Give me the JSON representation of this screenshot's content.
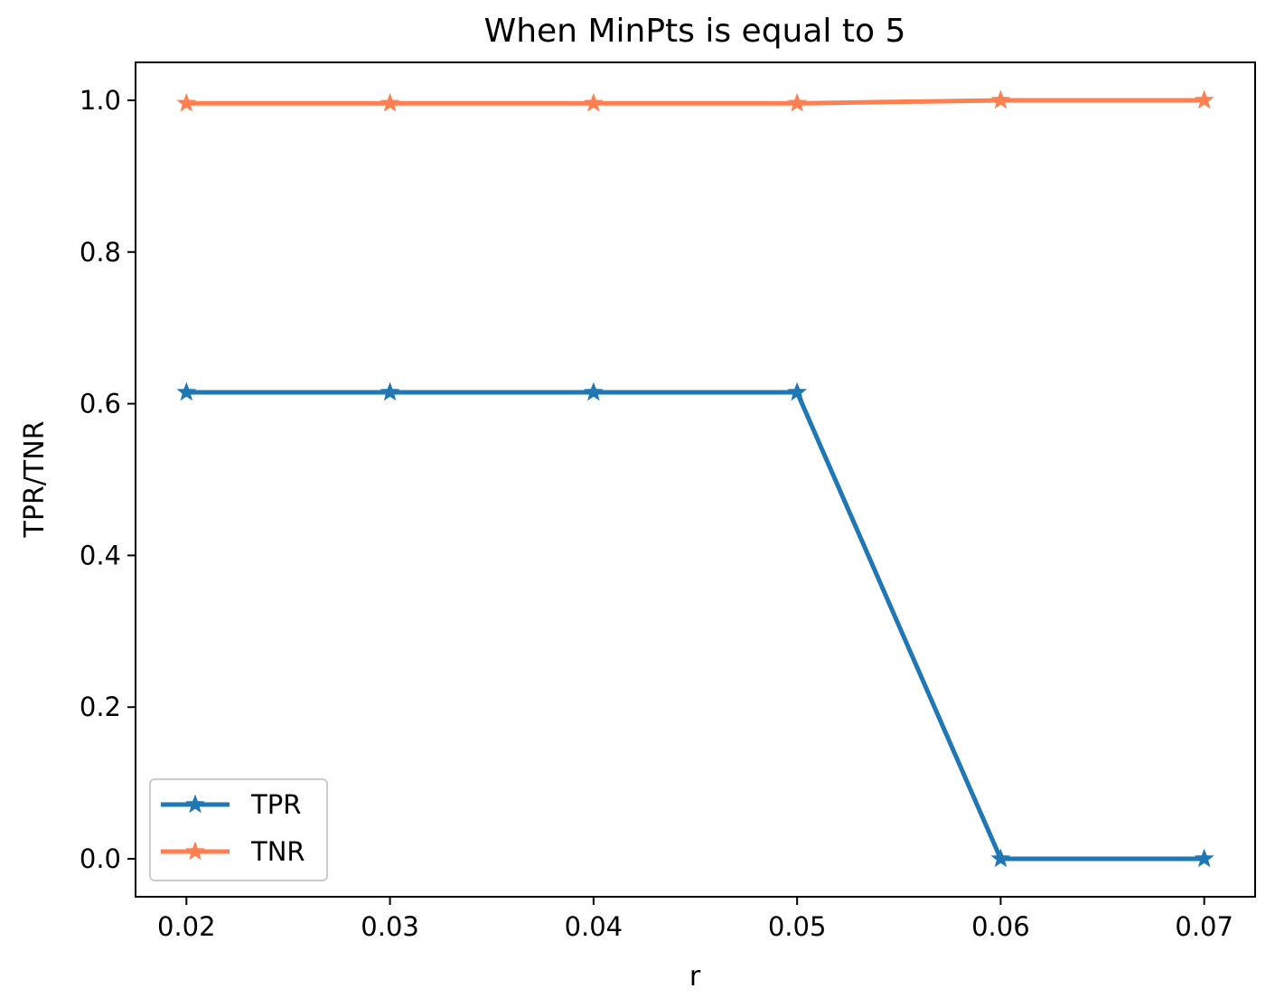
{
  "chart_data": {
    "type": "line",
    "title": "When MinPts is equal to 5",
    "xlabel": "r",
    "ylabel": "TPR/TNR",
    "x": [
      0.02,
      0.03,
      0.04,
      0.05,
      0.06,
      0.07
    ],
    "x_tick_labels": [
      "0.02",
      "0.03",
      "0.04",
      "0.05",
      "0.06",
      "0.07"
    ],
    "y_ticks": [
      0.0,
      0.2,
      0.4,
      0.6,
      0.8,
      1.0
    ],
    "y_tick_labels": [
      "0.0",
      "0.2",
      "0.4",
      "0.6",
      "0.8",
      "1.0"
    ],
    "xlim": [
      0.0175,
      0.0725
    ],
    "ylim": [
      -0.05,
      1.05
    ],
    "grid": false,
    "legend_position": "lower-left",
    "series": [
      {
        "name": "TPR",
        "color": "#1f77b4",
        "marker": "star",
        "values": [
          0.615,
          0.615,
          0.615,
          0.615,
          0.0,
          0.0
        ]
      },
      {
        "name": "TNR",
        "color": "#ff7f50",
        "marker": "star",
        "values": [
          0.996,
          0.996,
          0.996,
          0.996,
          1.0,
          1.0
        ]
      }
    ]
  }
}
